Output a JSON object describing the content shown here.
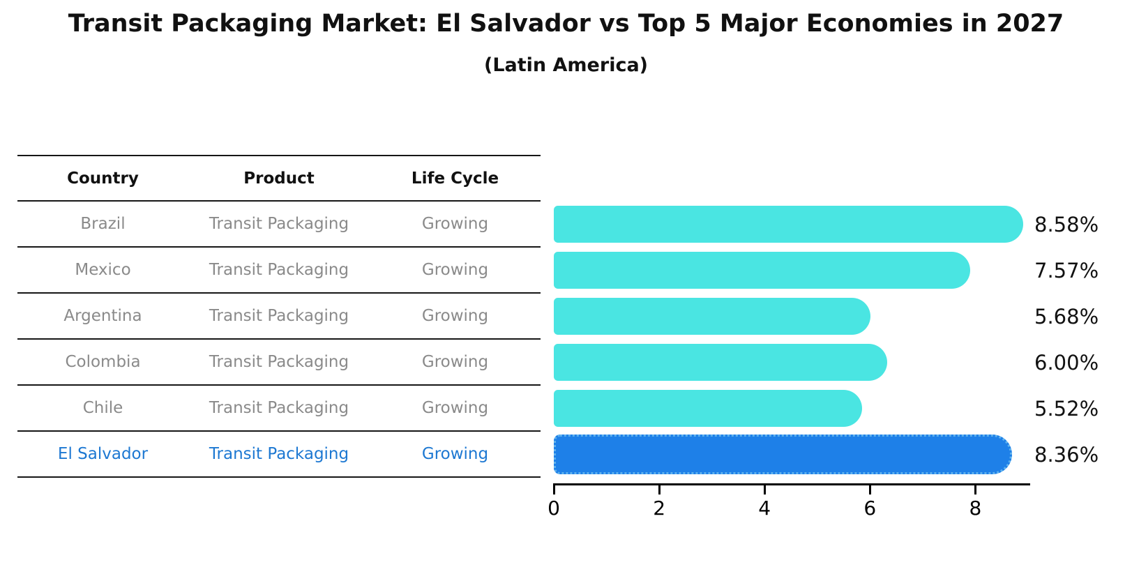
{
  "header": {
    "title": "Transit Packaging Market: El Salvador vs Top 5 Major Economies in 2027",
    "subtitle": "(Latin America)"
  },
  "table": {
    "columns": [
      "Country",
      "Product",
      "Life Cycle"
    ],
    "rows": [
      {
        "country": "Brazil",
        "product": "Transit Packaging",
        "life_cycle": "Growing",
        "highlight": false
      },
      {
        "country": "Mexico",
        "product": "Transit Packaging",
        "life_cycle": "Growing",
        "highlight": false
      },
      {
        "country": "Argentina",
        "product": "Transit Packaging",
        "life_cycle": "Growing",
        "highlight": false
      },
      {
        "country": "Colombia",
        "product": "Transit Packaging",
        "life_cycle": "Growing",
        "highlight": false
      },
      {
        "country": "Chile",
        "product": "Transit Packaging",
        "life_cycle": "Growing",
        "highlight": false
      },
      {
        "country": "El Salvador",
        "product": "Transit Packaging",
        "life_cycle": "Growing",
        "highlight": true
      }
    ]
  },
  "chart_data": {
    "type": "bar",
    "orientation": "horizontal",
    "title": "Transit Packaging Market: El Salvador vs Top 5 Major Economies in 2027",
    "subtitle": "(Latin America)",
    "categories": [
      "Brazil",
      "Mexico",
      "Argentina",
      "Colombia",
      "Chile",
      "El Salvador"
    ],
    "values": [
      8.58,
      7.57,
      5.68,
      6.0,
      5.52,
      8.36
    ],
    "value_labels": [
      "8.58%",
      "7.57%",
      "5.68%",
      "6.00%",
      "5.52%",
      "8.36%"
    ],
    "xlim": [
      0,
      9
    ],
    "xticks": [
      0,
      2,
      4,
      6,
      8
    ],
    "highlight_index": 5,
    "grid": false,
    "legend": "none",
    "colors": {
      "bar": "#4ae5e2",
      "highlight_bar": "#1e80e8",
      "highlight_border": "#5fb2ee",
      "highlight_text": "#1d78d2",
      "row_text": "#8a8a8a",
      "header_text": "#111111",
      "axis": "#000000",
      "value_label": "#111111"
    }
  }
}
